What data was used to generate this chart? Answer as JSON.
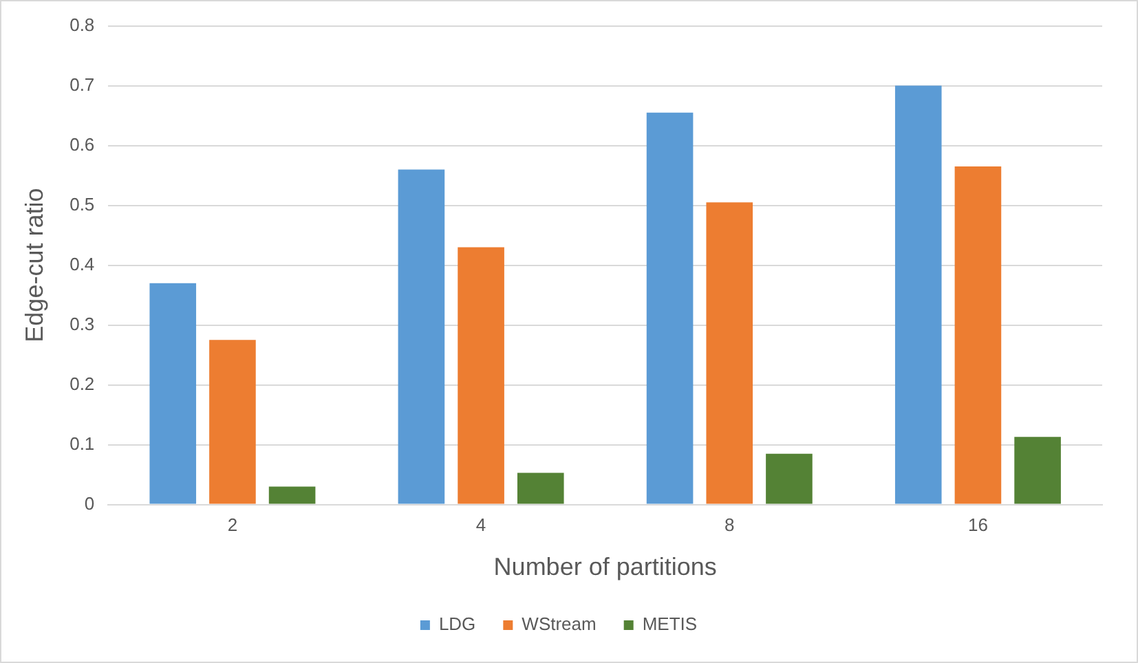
{
  "chart_data": {
    "type": "bar",
    "xlabel": "Number of partitions",
    "ylabel": "Edge-cut ratio",
    "categories": [
      "2",
      "4",
      "8",
      "16"
    ],
    "series": [
      {
        "name": "LDG",
        "color": "#5b9bd5",
        "values": [
          0.37,
          0.56,
          0.655,
          0.7
        ]
      },
      {
        "name": "WStream",
        "color": "#ed7d31",
        "values": [
          0.275,
          0.43,
          0.505,
          0.565
        ]
      },
      {
        "name": "METIS",
        "color": "#548235",
        "values": [
          0.03,
          0.053,
          0.085,
          0.113
        ]
      }
    ],
    "ylim": [
      0,
      0.8
    ],
    "yticks": [
      0,
      0.1,
      0.2,
      0.3,
      0.4,
      0.5,
      0.6,
      0.7,
      0.8
    ],
    "grid": "y",
    "legend": "bottom"
  }
}
